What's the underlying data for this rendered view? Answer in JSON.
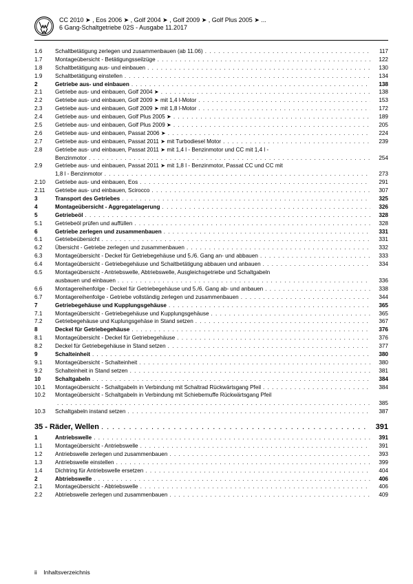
{
  "header": {
    "line1": "CC 2010 ➤ , Eos 2006 ➤ , Golf 2004 ➤ , Golf 2009 ➤ , Golf Plus 2005 ➤ ...",
    "line2": "6 Gang-Schaltgetriebe 02S - Ausgabe 11.2017"
  },
  "entries": [
    {
      "n": "1.6",
      "t": "Schaltbetätigung zerlegen und zusammenbauen (ab 11.06)",
      "p": "117",
      "d": true
    },
    {
      "n": "1.7",
      "t": "Montageübersicht - Betätigungsseilzüge",
      "p": "122",
      "d": true
    },
    {
      "n": "1.8",
      "t": "Schaltbetätigung aus- und einbauen",
      "p": "130",
      "d": true
    },
    {
      "n": "1.9",
      "t": "Schaltbetätigung einstellen",
      "p": "134",
      "d": true
    },
    {
      "n": "2",
      "t": "Getriebe aus- und einbauen",
      "p": "138",
      "d": true,
      "b": true
    },
    {
      "n": "2.1",
      "t": "Getriebe aus- und einbauen, Golf 2004 ➤",
      "p": "138",
      "d": true
    },
    {
      "n": "2.2",
      "t": "Getriebe aus- und einbauen, Golf 2009 ➤ mit 1,4 l-Motor",
      "p": "153",
      "d": true
    },
    {
      "n": "2.3",
      "t": "Getriebe aus- und einbauen, Golf 2009 ➤ mit 1,8 l-Motor",
      "p": "172",
      "d": true
    },
    {
      "n": "2.4",
      "t": "Getriebe aus- und einbauen, Golf Plus 2005 ➤",
      "p": "189",
      "d": true
    },
    {
      "n": "2.5",
      "t": "Getriebe aus- und einbauen, Golf Plus 2009 ➤",
      "p": "205",
      "d": true
    },
    {
      "n": "2.6",
      "t": "Getriebe aus- und einbauen, Passat 2006 ➤",
      "p": "224",
      "d": true
    },
    {
      "n": "2.7",
      "t": "Getriebe aus- und einbauen, Passat 2011 ➤ mit Turbodiesel Motor",
      "p": "239",
      "d": true
    },
    {
      "n": "2.8",
      "t": "Getriebe aus- und einbauen, Passat 2011 ➤ mit 1,4 l - Benzinmotor und CC mit 1,4 l -",
      "p": "",
      "d": false
    },
    {
      "n": "",
      "t": "Benzinmotor",
      "p": "254",
      "d": true
    },
    {
      "n": "2.9",
      "t": "Getriebe aus- und einbauen, Passat 2011 ➤ mit 1,8 l - Benzinmotor, Passat CC und CC mit",
      "p": "",
      "d": false
    },
    {
      "n": "",
      "t": "1,8 l - Benzinmotor",
      "p": "273",
      "d": true
    },
    {
      "n": "2.10",
      "t": "Getriebe aus- und einbauen, Eos",
      "p": "291",
      "d": true
    },
    {
      "n": "2.11",
      "t": "Getriebe aus- und einbauen, Scirocco",
      "p": "307",
      "d": true
    },
    {
      "n": "3",
      "t": "Transport des Getriebes",
      "p": "325",
      "d": true,
      "b": true
    },
    {
      "n": "4",
      "t": "Montageübersicht - Aggregatelagerung",
      "p": "326",
      "d": true,
      "b": true
    },
    {
      "n": "5",
      "t": "Getriebeöl",
      "p": "328",
      "d": true,
      "b": true
    },
    {
      "n": "5.1",
      "t": "Getriebeöl prüfen und auffüllen",
      "p": "328",
      "d": true
    },
    {
      "n": "6",
      "t": "Getriebe zerlegen und zusammenbauen",
      "p": "331",
      "d": true,
      "b": true
    },
    {
      "n": "6.1",
      "t": "Getriebeübersicht",
      "p": "331",
      "d": true
    },
    {
      "n": "6.2",
      "t": "Übersicht - Getriebe zerlegen und zusammenbauen",
      "p": "332",
      "d": true
    },
    {
      "n": "6.3",
      "t": "Montageübersicht - Deckel für Getriebegehäuse und 5./6. Gang an- und abbauen",
      "p": "333",
      "d": true
    },
    {
      "n": "6.4",
      "t": "Montageübersicht - Getriebegehäuse und Schaltbetätigung abbauen und anbauen",
      "p": "334",
      "d": true
    },
    {
      "n": "6.5",
      "t": "Montageübersicht - Antriebswelle, Abtriebswelle, Ausgleichsgetriebe und Schaltgabeln",
      "p": "",
      "d": false
    },
    {
      "n": "",
      "t": "ausbauen und einbauen",
      "p": "336",
      "d": true
    },
    {
      "n": "6.6",
      "t": "Montagereihenfolge - Deckel für Getriebegehäuse und 5./6. Gang ab- und anbauen",
      "p": "338",
      "d": true
    },
    {
      "n": "6.7",
      "t": "Montagereihenfolge - Getriebe vollständig zerlegen und zusammenbauen",
      "p": "344",
      "d": true
    },
    {
      "n": "7",
      "t": "Getriebegehäuse und Kupplungsgehäuse",
      "p": "365",
      "d": true,
      "b": true
    },
    {
      "n": "7.1",
      "t": "Montageübersicht - Getriebegehäuse und Kupplungsgehäuse",
      "p": "365",
      "d": true
    },
    {
      "n": "7.2",
      "t": "Getriebegehäuse und Kuplungsgehäse in Stand setzen",
      "p": "367",
      "d": true
    },
    {
      "n": "8",
      "t": "Deckel für Getriebegehäuse",
      "p": "376",
      "d": true,
      "b": true
    },
    {
      "n": "8.1",
      "t": "Montageübersicht - Deckel für Getriebegehäuse",
      "p": "376",
      "d": true
    },
    {
      "n": "8.2",
      "t": "Deckel für Getriebegehäuse in Stand setzen",
      "p": "377",
      "d": true
    },
    {
      "n": "9",
      "t": "Schalteinheit",
      "p": "380",
      "d": true,
      "b": true
    },
    {
      "n": "9.1",
      "t": "Montageübersicht - Schalteinheit",
      "p": "380",
      "d": true
    },
    {
      "n": "9.2",
      "t": "Schalteinheit in Stand setzen",
      "p": "381",
      "d": true
    },
    {
      "n": "10",
      "t": "Schaltgabeln",
      "p": "384",
      "d": true,
      "b": true
    },
    {
      "n": "10.1",
      "t": "Montageübersicht - Schaltgabeln in Verbindung mit Schaltrad Rückwärtsgang Pfeil",
      "p": "384",
      "d": true
    },
    {
      "n": "10.2",
      "t": "Montageübersicht - Schaltgabeln in Verbindung mit Schiebemuffe Rückwärtsgang Pfeil",
      "p": "",
      "d": false
    },
    {
      "n": "",
      "t": "",
      "p": "385",
      "d": true
    },
    {
      "n": "10.3",
      "t": "Schaltgabeln instand setzen",
      "p": "387",
      "d": true
    }
  ],
  "section35": {
    "title": "35 - Räder, Wellen",
    "page": "391",
    "entries": [
      {
        "n": "1",
        "t": "Antriebswelle",
        "p": "391",
        "d": true,
        "b": true
      },
      {
        "n": "1.1",
        "t": "Montageübersicht - Antriebswelle",
        "p": "391",
        "d": true
      },
      {
        "n": "1.2",
        "t": "Antriebswelle zerlegen und zusammenbauen",
        "p": "393",
        "d": true
      },
      {
        "n": "1.3",
        "t": "Antriebswelle einstellen",
        "p": "399",
        "d": true
      },
      {
        "n": "1.4",
        "t": "Dichtring für Antriebswelle ersetzen",
        "p": "404",
        "d": true
      },
      {
        "n": "2",
        "t": "Abtriebswelle",
        "p": "406",
        "d": true,
        "b": true
      },
      {
        "n": "2.1",
        "t": "Montageübersicht - Abtriebswelle",
        "p": "406",
        "d": true
      },
      {
        "n": "2.2",
        "t": "Abtriebswelle zerlegen und zusammenbauen",
        "p": "409",
        "d": true
      }
    ]
  },
  "footer": {
    "pageNum": "ii",
    "label": "Inhaltsverzeichnis"
  }
}
